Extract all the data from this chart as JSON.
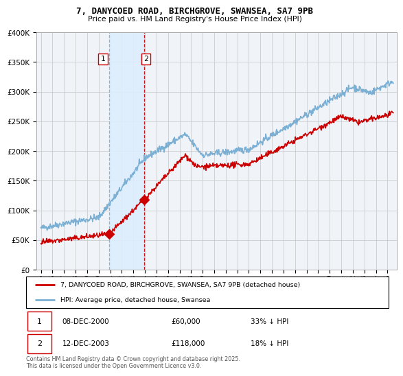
{
  "title": "7, DANYCOED ROAD, BIRCHGROVE, SWANSEA, SA7 9PB",
  "subtitle": "Price paid vs. HM Land Registry's House Price Index (HPI)",
  "legend_line1": "7, DANYCOED ROAD, BIRCHGROVE, SWANSEA, SA7 9PB (detached house)",
  "legend_line2": "HPI: Average price, detached house, Swansea",
  "footer": "Contains HM Land Registry data © Crown copyright and database right 2025.\nThis data is licensed under the Open Government Licence v3.0.",
  "sale1_label": "1",
  "sale1_date": "08-DEC-2000",
  "sale1_price": 60000,
  "sale1_price_str": "£60,000",
  "sale1_hpi_text": "33% ↓ HPI",
  "sale2_label": "2",
  "sale2_date": "12-DEC-2003",
  "sale2_price": 118000,
  "sale2_price_str": "£118,000",
  "sale2_hpi_text": "18% ↓ HPI",
  "red_color": "#cc0000",
  "blue_color": "#7bafd4",
  "shade_color": "#ddeeff",
  "bg_color": "#f0f4f8",
  "grid_color": "#cccccc",
  "ylim": [
    0,
    400000
  ],
  "ytick_vals": [
    0,
    50000,
    100000,
    150000,
    200000,
    250000,
    300000,
    350000,
    400000
  ],
  "ytick_labels": [
    "£0",
    "£50K",
    "£100K",
    "£150K",
    "£200K",
    "£250K",
    "£300K",
    "£350K",
    "£400K"
  ],
  "xmin": 1994.6,
  "xmax": 2025.8,
  "xtick_years": [
    1995,
    1996,
    1997,
    1998,
    1999,
    2000,
    2001,
    2002,
    2003,
    2004,
    2005,
    2006,
    2007,
    2008,
    2009,
    2010,
    2011,
    2012,
    2013,
    2014,
    2015,
    2016,
    2017,
    2018,
    2019,
    2020,
    2021,
    2022,
    2023,
    2024,
    2025
  ],
  "sale1_x": 2000.92,
  "sale1_y": 60000,
  "sale2_x": 2003.92,
  "sale2_y": 118000
}
